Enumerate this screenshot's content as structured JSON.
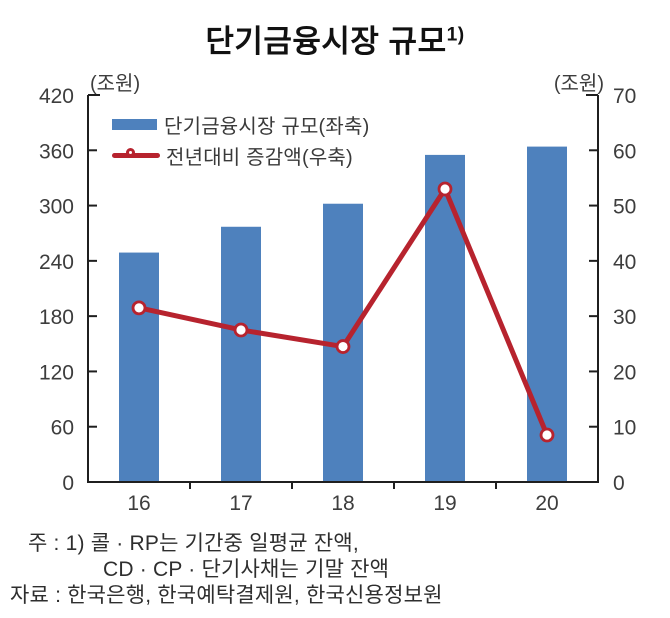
{
  "title": {
    "text": "단기금융시장 규모",
    "footnote_marker": "1)"
  },
  "axes": {
    "left": {
      "unit": "(조원)",
      "ticks": [
        "420",
        "360",
        "300",
        "240",
        "180",
        "120",
        "60",
        "0"
      ]
    },
    "right": {
      "unit": "(조원)",
      "ticks": [
        "70",
        "60",
        "50",
        "40",
        "30",
        "20",
        "10",
        "0"
      ]
    },
    "x": {
      "labels": [
        "16",
        "17",
        "18",
        "19",
        "20"
      ]
    }
  },
  "legend": {
    "bar_label": "단기금융시장 규모(좌축)",
    "line_label": "전년대비 증감액(우축)"
  },
  "chart_data": {
    "type": "bar",
    "title": "단기금융시장 규모 1)",
    "categories": [
      "16",
      "17",
      "18",
      "19",
      "20"
    ],
    "series": [
      {
        "name": "단기금융시장 규모(좌축)",
        "type": "bar",
        "axis": "left",
        "color": "#4e81bd",
        "values": [
          249,
          277,
          302,
          355,
          364
        ]
      },
      {
        "name": "전년대비 증감액(우축)",
        "type": "line",
        "axis": "right",
        "color": "#b7232e",
        "marker": "open-circle",
        "values": [
          31.5,
          27.5,
          24.5,
          53,
          8.5
        ]
      }
    ],
    "left_axis": {
      "label": "(조원)",
      "min": 0,
      "max": 420,
      "tick_step": 60
    },
    "right_axis": {
      "label": "(조원)",
      "min": 0,
      "max": 70,
      "tick_step": 10
    },
    "grid": false,
    "legend_position": "inside-top-left"
  },
  "footer": {
    "note_line1": "주 : 1) 콜 · RP는 기간중 일평균 잔액,",
    "note_line2": "CD · CP · 단기사채는 기말 잔액",
    "source": "자료 : 한국은행, 한국예탁결제원, 한국신용정보원"
  },
  "colors": {
    "bar": "#4e81bd",
    "line": "#b7232e",
    "axis": "#1f1f1f",
    "tick_text": "#3d3d3d",
    "note_text": "#2e2e2e"
  }
}
